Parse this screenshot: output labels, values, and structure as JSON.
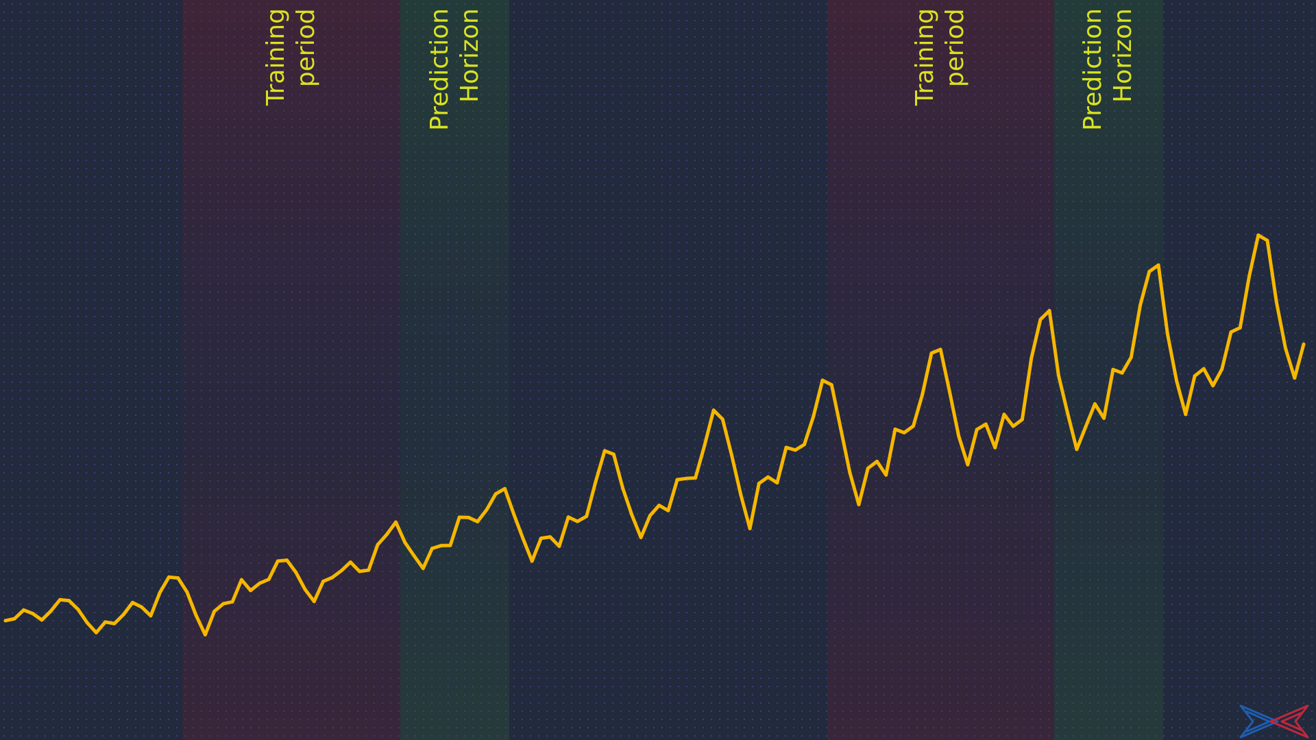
{
  "chart_data": {
    "type": "line",
    "title": "",
    "xlabel": "",
    "ylabel": "",
    "grid": false,
    "series": [
      {
        "color": "#f5b700",
        "values": [
          0.56,
          0.67,
          1.17,
          0.97,
          0.6,
          1.11,
          1.76,
          1.71,
          1.2,
          0.44,
          -0.13,
          0.48,
          0.39,
          0.91,
          1.6,
          1.34,
          0.84,
          2.17,
          3.06,
          3.01,
          2.2,
          0.86,
          -0.25,
          1.09,
          1.53,
          1.64,
          2.91,
          2.29,
          2.71,
          2.93,
          3.98,
          4.03,
          3.33,
          2.35,
          1.66,
          2.82,
          3.04,
          3.43,
          3.92,
          3.39,
          3.46,
          4.92,
          5.51,
          6.22,
          5.05,
          4.29,
          3.56,
          4.71,
          4.87,
          4.88,
          6.5,
          6.49,
          6.25,
          6.93,
          7.84,
          8.14,
          6.67,
          5.28,
          3.98,
          5.29,
          5.37,
          4.83,
          6.51,
          6.26,
          6.55,
          8.52,
          10.32,
          10.12,
          8.17,
          6.63,
          5.34,
          6.6,
          7.18,
          6.88,
          8.66,
          8.73,
          8.76,
          10.61,
          12.65,
          12.13,
          10.05,
          7.79,
          5.85,
          8.44,
          8.81,
          8.48,
          10.51,
          10.36,
          10.68,
          12.3,
          14.37,
          14.11,
          11.61,
          9.08,
          7.23,
          9.31,
          9.71,
          8.93,
          11.56,
          11.36,
          11.74,
          13.55,
          15.93,
          16.14,
          13.7,
          11.17,
          9.52,
          11.54,
          11.85,
          10.5,
          12.41,
          11.73,
          12.12,
          15.63,
          17.86,
          18.37,
          14.65,
          12.48,
          10.4,
          11.71,
          13.01,
          12.19,
          14.99,
          14.79,
          15.69,
          18.69,
          20.62,
          20.99,
          17.05,
          14.34,
          12.41,
          14.62,
          15.03,
          14.06,
          15.01,
          17.14,
          17.39,
          20.33,
          22.71,
          22.4,
          18.87,
          16.21,
          14.5,
          16.44
        ]
      }
    ],
    "shaded_regions": [
      {
        "kind": "training",
        "label": "Training\nperiod",
        "x_start": 19.5,
        "x_end": 43.5
      },
      {
        "kind": "prediction",
        "label": "Prediction\nHorizon",
        "x_start": 43.5,
        "x_end": 55.5
      },
      {
        "kind": "training",
        "label": "Training\nperiod",
        "x_start": 90.5,
        "x_end": 115.5
      },
      {
        "kind": "prediction",
        "label": "Prediction\nHorizon",
        "x_start": 115.5,
        "x_end": 127.5
      }
    ],
    "colors": {
      "line": "#f5b700",
      "label": "#d9e321",
      "background": "#222a3d",
      "training_band": "#6e1c30",
      "prediction_band": "#285a32"
    }
  },
  "logo": {
    "name": "logo-icon",
    "colors": [
      "#1e5eb0",
      "#c0283c"
    ]
  }
}
